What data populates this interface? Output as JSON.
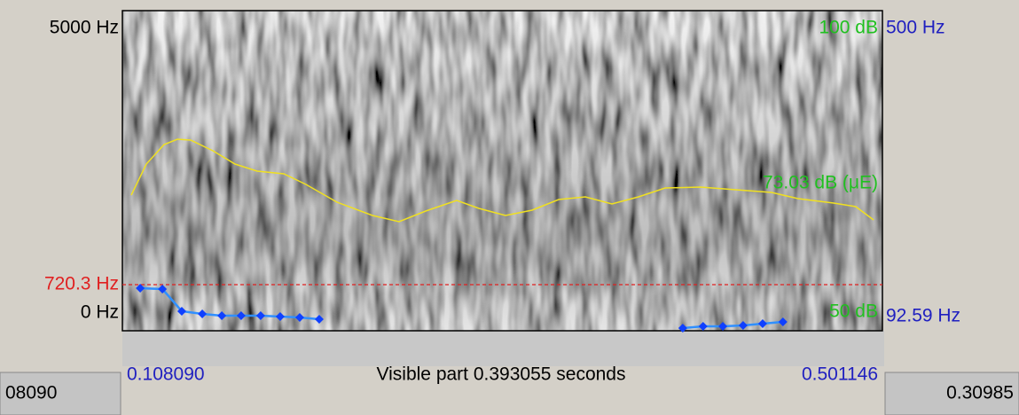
{
  "spectrogram": {
    "freq_axis": [
      {
        "value": 5000,
        "label": "5000 Hz"
      },
      {
        "value": 0,
        "label": "0 Hz"
      }
    ],
    "cursor": {
      "value": 720.3,
      "label": "720.3 Hz"
    }
  },
  "pitch": {
    "axis": [
      {
        "value": 500,
        "label": "500 Hz"
      },
      {
        "value": 92.59,
        "label": "92.59 Hz"
      }
    ],
    "segments": [
      {
        "times": [
          0.1173,
          0.1288,
          0.1388,
          0.1494,
          0.1595,
          0.1695,
          0.1796,
          0.1897,
          0.1998,
          0.2099
        ],
        "values": [
          146.8,
          145.6,
          117.4,
          114.0,
          111.8,
          111.8,
          111.8,
          110.6,
          109.5,
          107.3
        ]
      },
      {
        "times": [
          0.3979,
          0.4084,
          0.4186,
          0.4291,
          0.4392,
          0.4497
        ],
        "values": [
          96.0,
          98.2,
          98.2,
          99.4,
          101.6,
          103.9
        ]
      }
    ]
  },
  "intensity": {
    "axis": [
      {
        "value": 100,
        "label": "100 dB"
      },
      {
        "value": 50,
        "label": "50 dB"
      }
    ],
    "readout": "73.03 dB (μE)",
    "times": [
      0.11268,
      0.12047,
      0.12964,
      0.13652,
      0.1434,
      0.15487,
      0.16633,
      0.1778,
      0.19156,
      0.20302,
      0.21907,
      0.23742,
      0.25118,
      0.26493,
      0.28099,
      0.29245,
      0.30621,
      0.31997,
      0.33373,
      0.34749,
      0.36124,
      0.375,
      0.38876,
      0.4071,
      0.42545,
      0.44379,
      0.45755,
      0.4759,
      0.48736,
      0.49654
    ],
    "values": [
      71.19,
      76.04,
      79.09,
      79.92,
      79.78,
      78.12,
      76.04,
      74.93,
      74.51,
      72.85,
      70.08,
      68.01,
      67.04,
      68.7,
      70.36,
      69.11,
      68.01,
      68.84,
      70.5,
      70.91,
      69.8,
      70.91,
      72.3,
      72.44,
      72.02,
      71.61,
      70.64,
      69.94,
      69.39,
      67.31
    ]
  },
  "time": {
    "start": {
      "value": 0.10809,
      "label": "0.108090"
    },
    "end": {
      "value": 0.501146,
      "label": "0.501146"
    },
    "visible": "Visible part 0.393055 seconds"
  },
  "footer": {
    "left": "08090",
    "right": "0.30985"
  }
}
